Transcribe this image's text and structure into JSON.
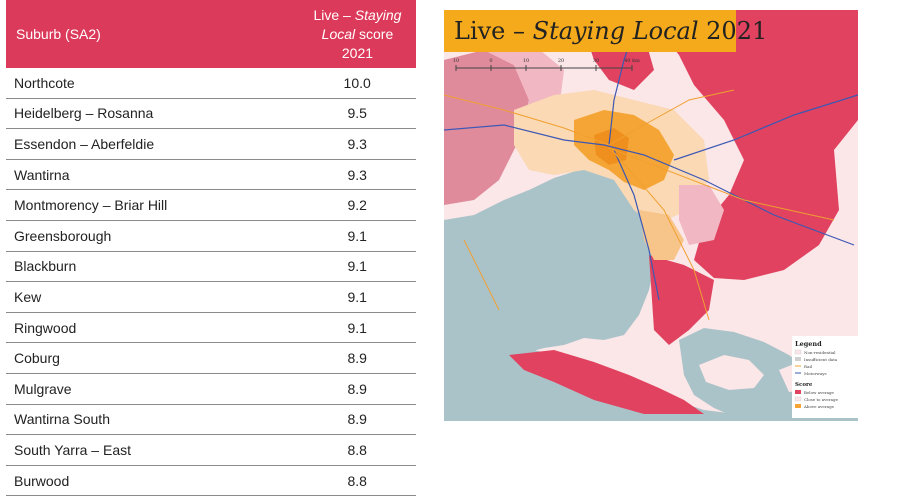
{
  "table": {
    "header": {
      "suburb": "Suburb (SA2)",
      "score_prefix": "Live – ",
      "score_italic": "Staying Local",
      "score_suffix": " score",
      "score_year": "2021"
    },
    "rows": [
      {
        "suburb": "Northcote",
        "score": "10.0"
      },
      {
        "suburb": "Heidelberg – Rosanna",
        "score": "9.5"
      },
      {
        "suburb": "Essendon – Aberfeldie",
        "score": "9.3"
      },
      {
        "suburb": "Wantirna",
        "score": "9.3"
      },
      {
        "suburb": "Montmorency – Briar Hill",
        "score": "9.2"
      },
      {
        "suburb": "Greensborough",
        "score": "9.1"
      },
      {
        "suburb": "Blackburn",
        "score": "9.1"
      },
      {
        "suburb": "Kew",
        "score": "9.1"
      },
      {
        "suburb": "Ringwood",
        "score": "9.1"
      },
      {
        "suburb": "Coburg",
        "score": "8.9"
      },
      {
        "suburb": "Mulgrave",
        "score": "8.9"
      },
      {
        "suburb": "Wantirna South",
        "score": "8.9"
      },
      {
        "suburb": "South Yarra – East",
        "score": "8.8"
      },
      {
        "suburb": "Burwood",
        "score": "8.8"
      }
    ]
  },
  "map": {
    "title_prefix": "Live – ",
    "title_italic": "Staying Local",
    "title_suffix": " 2021",
    "scale": {
      "labels": [
        "10",
        "0",
        "10",
        "20",
        "30",
        "40 km"
      ]
    },
    "legend": {
      "title": "Legend",
      "items": [
        "Non-residential",
        "Insufficient data",
        "Rail",
        "Motorways"
      ],
      "score_title": "Score",
      "score_items": [
        "Below average",
        "Close to average",
        "Above average"
      ]
    },
    "colors": {
      "water": "#aac3c9",
      "below_average": "#e0425f",
      "close_to_average": "#fbe6e8",
      "above_average": "#f5a535",
      "rail": "#f0a030",
      "motorway": "#3c58b4",
      "title_bg": "#f4aa1b",
      "header_bg": "#dc3a5a"
    }
  }
}
